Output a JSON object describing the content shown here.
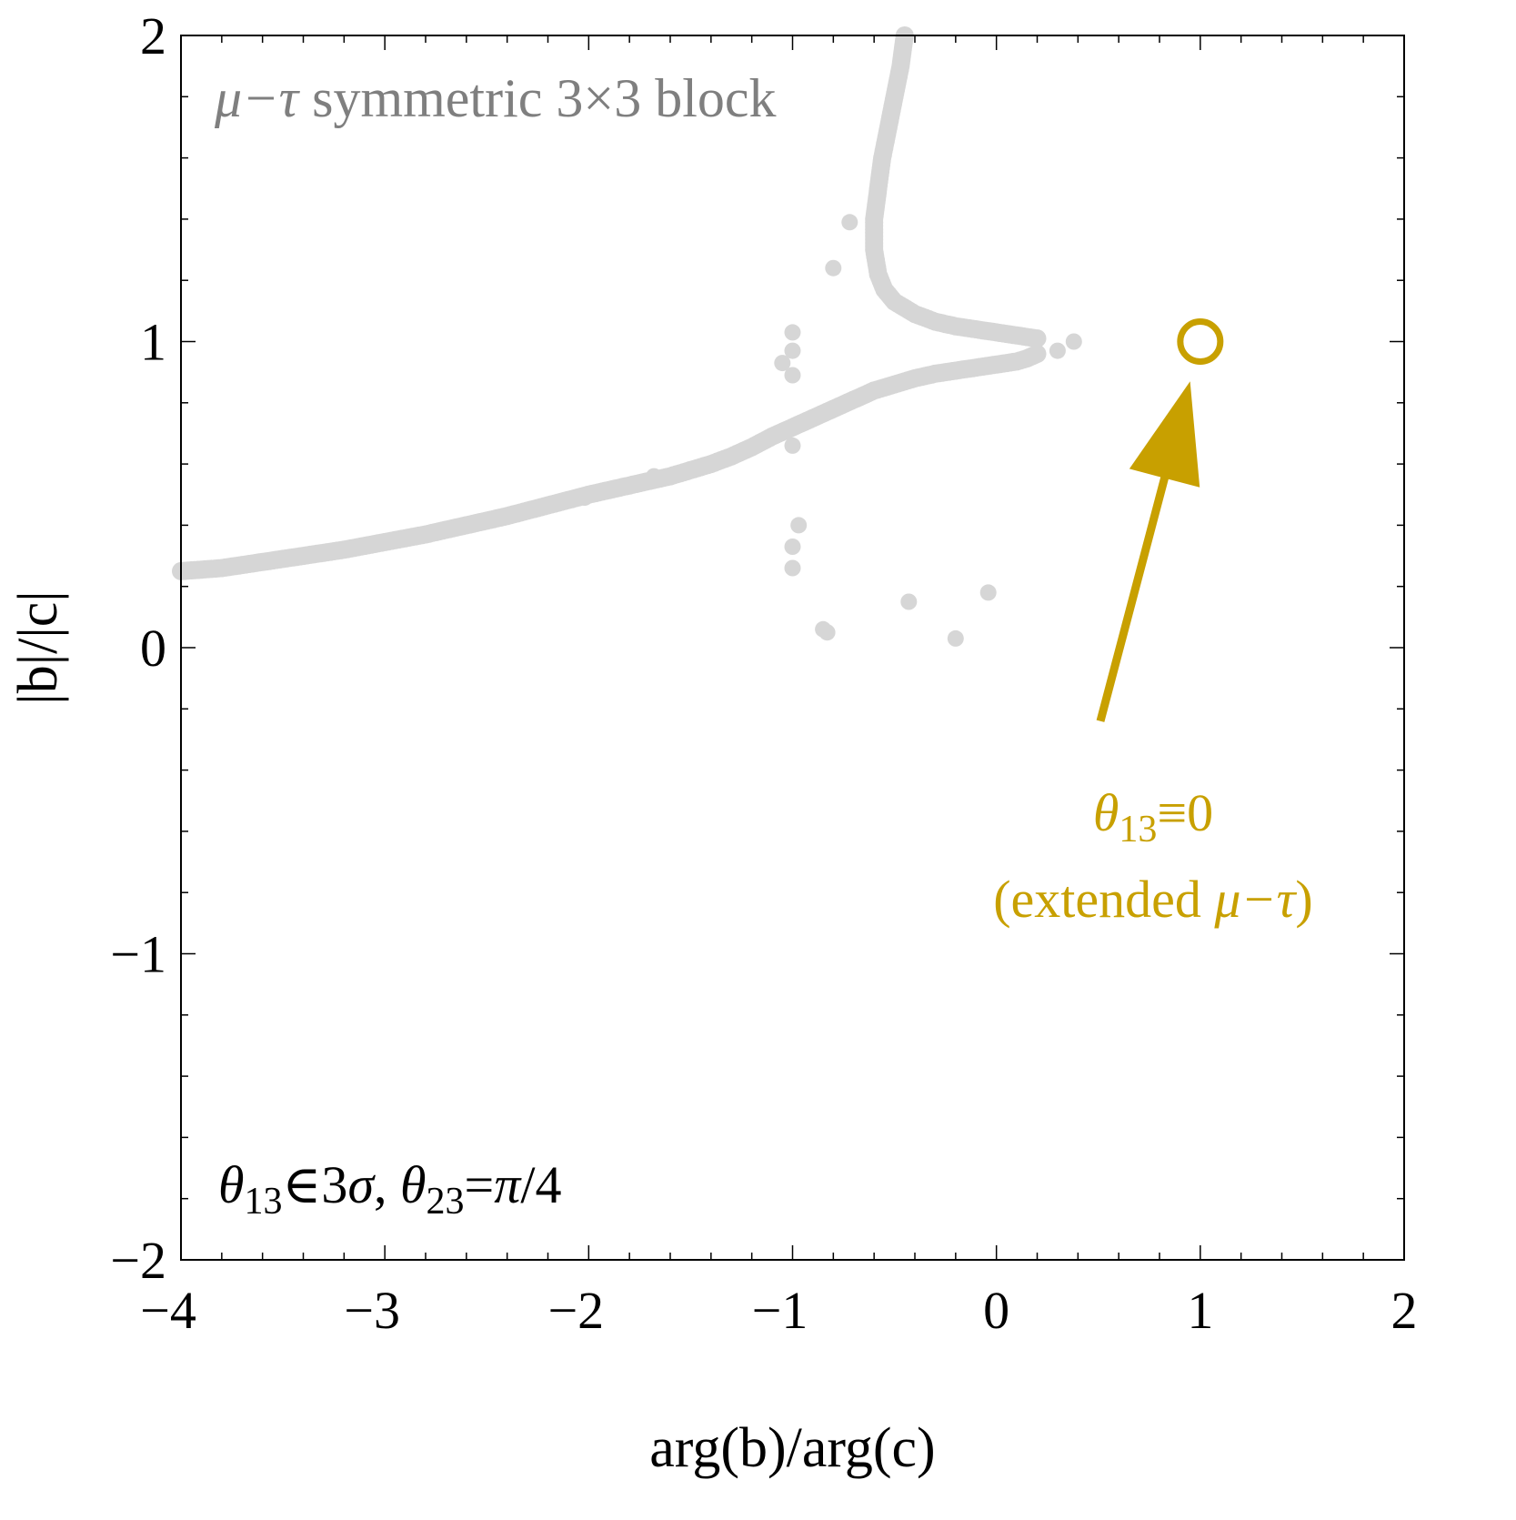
{
  "chart_data": {
    "type": "scatter",
    "xlabel": "arg(b)/arg(c)",
    "ylabel": "|b|/|c|",
    "xlim": [
      -4,
      2
    ],
    "ylim": [
      -2,
      2
    ],
    "xticks": [
      -4,
      -3,
      -2,
      -1,
      0,
      1,
      2
    ],
    "xtick_labels": [
      "−4",
      "−3",
      "−2",
      "−1",
      "0",
      "1",
      "2"
    ],
    "yticks": [
      -2,
      -1,
      0,
      1,
      2
    ],
    "ytick_labels": [
      "−2",
      "−1",
      "0",
      "1",
      "2"
    ],
    "grid": false,
    "colors": {
      "points": "#d6d6d6",
      "title": "#7f7f7f",
      "annotation": "#c8a000",
      "frame": "#000000"
    },
    "title_annotation": {
      "mu_tau": "μ−τ",
      "rest": " symmetric 3×3 block"
    },
    "condition_annotation": {
      "parts": [
        {
          "text": "θ",
          "italic": true
        },
        {
          "text": "13",
          "sub": true
        },
        {
          "text": "∈3"
        },
        {
          "text": "σ",
          "italic": true
        },
        {
          "text": ", "
        },
        {
          "text": "θ",
          "italic": true
        },
        {
          "text": "23",
          "sub": true
        },
        {
          "text": "="
        },
        {
          "text": "π",
          "italic": true
        },
        {
          "text": "/4"
        }
      ]
    },
    "marker_annotation": {
      "line1": [
        {
          "text": "θ",
          "italic": true
        },
        {
          "text": "13",
          "sub": true
        },
        {
          "text": "≡0"
        }
      ],
      "line2": [
        {
          "text": "(extended "
        },
        {
          "text": "μ−τ",
          "italic": true
        },
        {
          "text": ")"
        }
      ]
    },
    "highlight_point": {
      "x": 1.0,
      "y": 1.0
    },
    "arrow": {
      "from": [
        0.51,
        -0.24
      ],
      "to": [
        0.95,
        0.87
      ]
    },
    "series": [
      {
        "style": "band",
        "x": [
          -4.0,
          -3.8,
          -3.6,
          -3.4,
          -3.2,
          -3.0,
          -2.8,
          -2.6,
          -2.4,
          -2.2,
          -2.0,
          -1.8,
          -1.6,
          -1.4,
          -1.3,
          -1.2,
          -1.1,
          -1.0,
          -0.9,
          -0.8,
          -0.7,
          -0.6,
          -0.5,
          -0.4,
          -0.3,
          -0.2,
          -0.1,
          0.0,
          0.1,
          0.15,
          0.2
        ],
        "y": [
          0.25,
          0.26,
          0.28,
          0.3,
          0.32,
          0.345,
          0.37,
          0.4,
          0.43,
          0.465,
          0.5,
          0.53,
          0.56,
          0.6,
          0.625,
          0.655,
          0.69,
          0.72,
          0.75,
          0.78,
          0.81,
          0.84,
          0.86,
          0.88,
          0.895,
          0.905,
          0.915,
          0.925,
          0.935,
          0.945,
          0.96
        ]
      },
      {
        "style": "band",
        "x": [
          0.2,
          0.1,
          0.0,
          -0.1,
          -0.2,
          -0.3,
          -0.4,
          -0.5,
          -0.55,
          -0.58,
          -0.6,
          -0.6,
          -0.58,
          -0.56,
          -0.53,
          -0.5,
          -0.47,
          -0.45
        ],
        "y": [
          1.01,
          1.02,
          1.03,
          1.04,
          1.05,
          1.065,
          1.09,
          1.13,
          1.17,
          1.22,
          1.3,
          1.4,
          1.5,
          1.6,
          1.7,
          1.8,
          1.9,
          2.0
        ]
      },
      {
        "style": "dots",
        "x": [
          -0.72,
          -0.8,
          -1.0,
          -1.0,
          -1.05,
          -1.0,
          -1.0,
          -0.97,
          -1.0,
          -1.0,
          -0.85,
          -0.83,
          -0.43,
          -0.2,
          -0.04,
          0.3,
          0.38,
          -2.02,
          -1.68
        ],
        "y": [
          1.39,
          1.24,
          1.03,
          0.97,
          0.93,
          0.89,
          0.66,
          0.4,
          0.33,
          0.26,
          0.06,
          0.05,
          0.15,
          0.03,
          0.18,
          0.97,
          1.0,
          0.49,
          0.56
        ]
      }
    ]
  }
}
